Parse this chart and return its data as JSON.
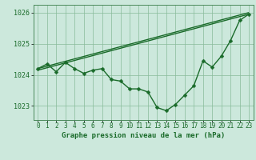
{
  "title": "Graphe pression niveau de la mer (hPa)",
  "background_color": "#cce8dc",
  "plot_bg_color": "#cce8dc",
  "grid_color": "#88bb99",
  "line_color": "#1a6b2a",
  "spine_color": "#4a8a5a",
  "xlim": [
    -0.5,
    23.5
  ],
  "ylim": [
    1022.55,
    1026.25
  ],
  "yticks": [
    1023,
    1024,
    1025,
    1026
  ],
  "ytick_labels": [
    "1023",
    "1024",
    "1025",
    "1026"
  ],
  "xticks": [
    0,
    1,
    2,
    3,
    4,
    5,
    6,
    7,
    8,
    9,
    10,
    11,
    12,
    13,
    14,
    15,
    16,
    17,
    18,
    19,
    20,
    21,
    22,
    23
  ],
  "series1_x": [
    0,
    1,
    2,
    3,
    4,
    5,
    6,
    7,
    8,
    9,
    10,
    11,
    12,
    13,
    14,
    15,
    16,
    17,
    18,
    19,
    20,
    21,
    22,
    23
  ],
  "series1_y": [
    1024.2,
    1024.35,
    1024.1,
    1024.4,
    1024.2,
    1024.05,
    1024.15,
    1024.2,
    1023.85,
    1023.8,
    1023.55,
    1023.55,
    1023.45,
    1022.95,
    1022.85,
    1023.05,
    1023.35,
    1023.65,
    1024.45,
    1024.25,
    1024.6,
    1025.1,
    1025.75,
    1025.95
  ],
  "series2_x": [
    0,
    23
  ],
  "series2_y": [
    1024.2,
    1026.0
  ],
  "series3_x": [
    0,
    23
  ],
  "series3_y": [
    1024.15,
    1025.95
  ],
  "marker": "D",
  "marker_size": 2.5,
  "line_width": 1.0,
  "xlabel_fontsize": 6.5,
  "tick_fontsize": 5.5,
  "ytick_fontsize": 6.0
}
